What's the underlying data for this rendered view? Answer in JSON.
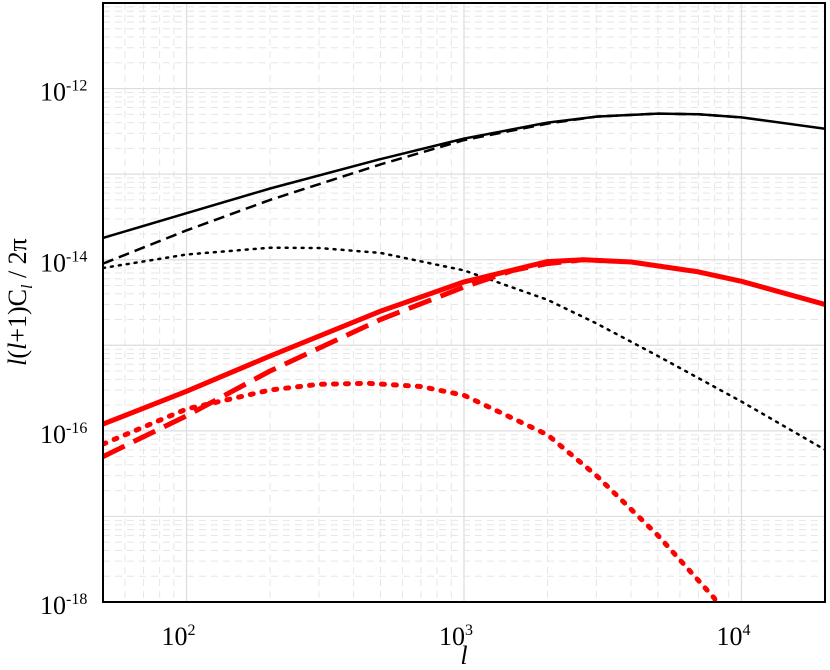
{
  "chart_data": {
    "type": "line",
    "title": "",
    "xlabel": "l",
    "ylabel_parts": {
      "a": "l",
      "b": "(",
      "c": "l",
      "d": "+1)C",
      "e": "l",
      "f": " / 2π"
    },
    "xscale": "log",
    "yscale": "log",
    "xlim": [
      50,
      20000
    ],
    "ylim": [
      1e-18,
      1e-11
    ],
    "grid": true,
    "legend": "none",
    "x_ticks": [
      {
        "value": 100,
        "base": "10",
        "exp": "2"
      },
      {
        "value": 1000,
        "base": "10",
        "exp": "3"
      },
      {
        "value": 10000,
        "base": "10",
        "exp": "4"
      }
    ],
    "y_ticks": [
      {
        "value": 1e-12,
        "base": "10",
        "exp": "-12"
      },
      {
        "value": 1e-14,
        "base": "10",
        "exp": "-14"
      },
      {
        "value": 1e-16,
        "base": "10",
        "exp": "-16"
      },
      {
        "value": 1e-18,
        "base": "10",
        "exp": "-18"
      }
    ],
    "series": [
      {
        "color": "#000000",
        "style": "solid",
        "width": 2.5,
        "x": [
          50,
          100,
          200,
          500,
          1000,
          2000,
          3000,
          5000,
          7000,
          10000,
          20000
        ],
        "y": [
          1.8e-14,
          3.5e-14,
          6.8e-14,
          1.5e-13,
          2.6e-13,
          4e-13,
          4.7e-13,
          5.1e-13,
          5e-13,
          4.6e-13,
          3.4e-13
        ]
      },
      {
        "color": "#000000",
        "style": "dashed",
        "width": 2.5,
        "x": [
          50,
          100,
          200,
          500,
          1000,
          2000,
          3000,
          5000,
          7000,
          10000
        ],
        "y": [
          9e-15,
          2.2e-14,
          5e-14,
          1.3e-13,
          2.5e-13,
          3.9e-13,
          4.7e-13,
          5.1e-13,
          5e-13,
          4.6e-13
        ]
      },
      {
        "color": "#000000",
        "style": "dotted",
        "width": 2.5,
        "x": [
          50,
          100,
          200,
          300,
          500,
          1000,
          2000,
          3000,
          5000,
          10000,
          20000
        ],
        "y": [
          8e-15,
          1.15e-14,
          1.38e-14,
          1.37e-14,
          1.2e-14,
          7.5e-15,
          3.4e-15,
          1.8e-15,
          7.5e-16,
          2.2e-16,
          6e-17
        ]
      },
      {
        "color": "#ff0000",
        "style": "solid",
        "width": 5,
        "x": [
          50,
          100,
          200,
          500,
          1000,
          2000,
          2700,
          4000,
          7000,
          10000,
          20000
        ],
        "y": [
          1.2e-16,
          2.9e-16,
          7.5e-16,
          2.5e-15,
          5.5e-15,
          9.5e-15,
          1e-14,
          9.4e-15,
          7.2e-15,
          5.6e-15,
          3e-15
        ]
      },
      {
        "color": "#ff0000",
        "style": "dashed",
        "width": 5,
        "x": [
          50,
          100,
          200,
          500,
          1000,
          1500,
          2000,
          2700
        ],
        "y": [
          5e-17,
          1.5e-16,
          5e-16,
          2e-15,
          4.8e-15,
          7.5e-15,
          9e-15,
          1e-14
        ]
      },
      {
        "color": "#ff0000",
        "style": "dotted",
        "width": 5,
        "x": [
          50,
          100,
          200,
          300,
          450,
          700,
          1000,
          2000,
          3000,
          5000,
          8000,
          10000
        ],
        "y": [
          7e-17,
          1.8e-16,
          3e-16,
          3.5e-16,
          3.6e-16,
          3.3e-16,
          2.6e-16,
          9e-17,
          3e-17,
          6e-18,
          1.1e-18,
          1e-19
        ]
      }
    ]
  }
}
